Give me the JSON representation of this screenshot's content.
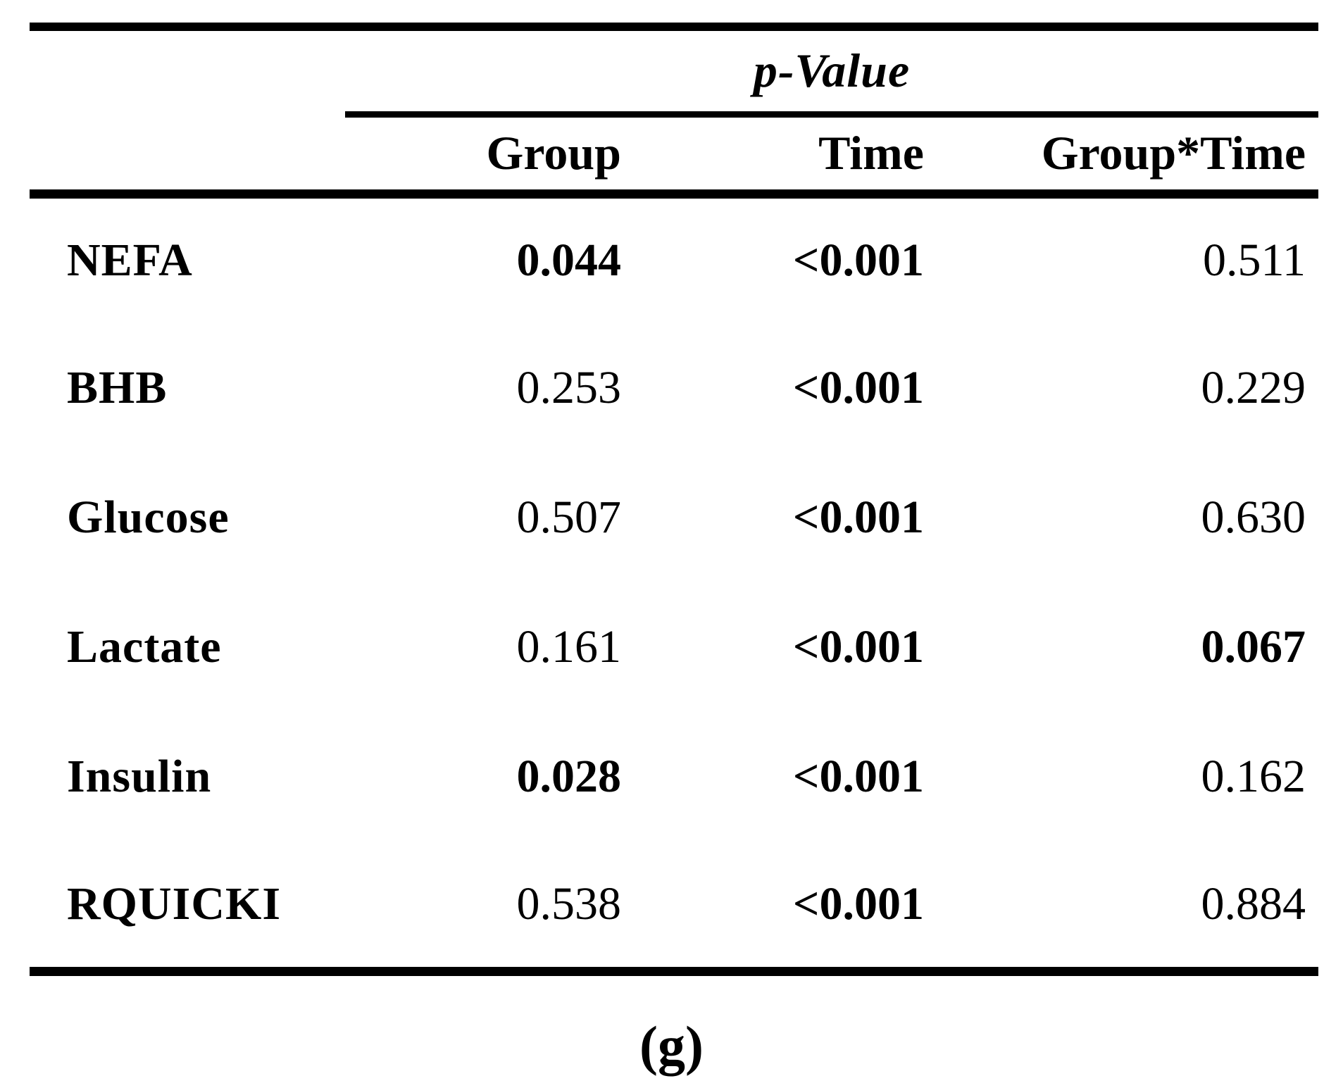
{
  "colors": {
    "background": "#ffffff",
    "text": "#000000",
    "rule": "#000000"
  },
  "table": {
    "spanner_label": "p-Value",
    "columns": [
      "Group",
      "Time",
      "Group*Time"
    ],
    "rows": [
      {
        "label": "NEFA",
        "values": [
          "0.044",
          "<0.001",
          "0.511"
        ],
        "bold": [
          true,
          true,
          false
        ]
      },
      {
        "label": "BHB",
        "values": [
          "0.253",
          "<0.001",
          "0.229"
        ],
        "bold": [
          false,
          true,
          false
        ]
      },
      {
        "label": "Glucose",
        "values": [
          "0.507",
          "<0.001",
          "0.630"
        ],
        "bold": [
          false,
          true,
          false
        ]
      },
      {
        "label": "Lactate",
        "values": [
          "0.161",
          "<0.001",
          "0.067"
        ],
        "bold": [
          false,
          true,
          true
        ]
      },
      {
        "label": "Insulin",
        "values": [
          "0.028",
          "<0.001",
          "0.162"
        ],
        "bold": [
          true,
          true,
          false
        ]
      },
      {
        "label": "RQUICKI",
        "values": [
          "0.538",
          "<0.001",
          "0.884"
        ],
        "bold": [
          false,
          true,
          false
        ]
      }
    ]
  },
  "caption": "(g)"
}
